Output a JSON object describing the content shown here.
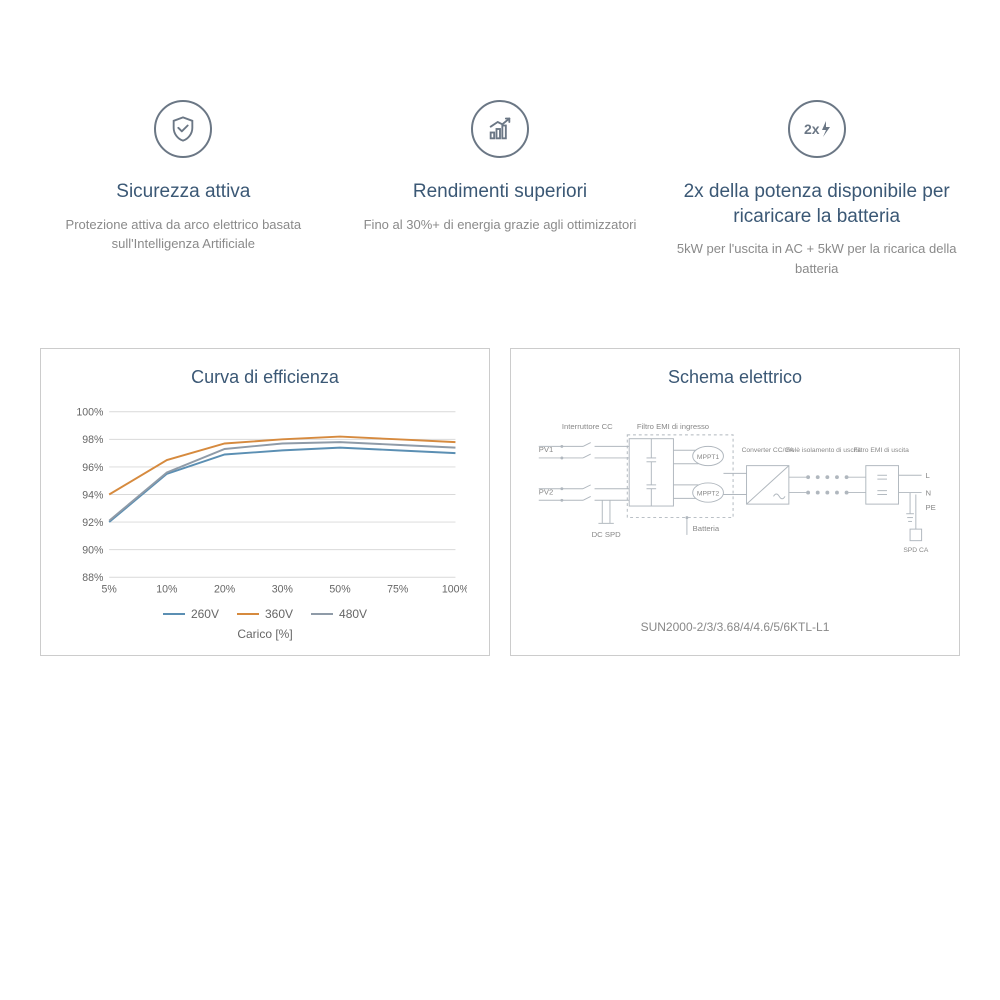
{
  "features": [
    {
      "title": "Sicurezza attiva",
      "desc": "Protezione attiva da arco elettrico basata sull'Intelligenza Artificiale"
    },
    {
      "title": "Rendimenti superiori",
      "desc": "Fino al 30%+ di energia grazie agli ottimizzatori"
    },
    {
      "title": "2x della potenza disponibile per ricaricare la batteria",
      "desc": "5kW per l'uscita in AC + 5kW per la ricarica della batteria"
    }
  ],
  "chart": {
    "title": "Curva di efficienza",
    "type": "line",
    "x_categories": [
      "5%",
      "10%",
      "20%",
      "30%",
      "50%",
      "75%",
      "100%"
    ],
    "x_axis_title": "Carico [%]",
    "y_ticks": [
      "88%",
      "90%",
      "92%",
      "94%",
      "96%",
      "98%",
      "100%"
    ],
    "ylim": [
      88,
      100
    ],
    "series": [
      {
        "name": "260V",
        "color": "#5b8fb3",
        "values": [
          92.0,
          95.5,
          96.9,
          97.2,
          97.4,
          97.2,
          97.0
        ]
      },
      {
        "name": "360V",
        "color": "#d68a3e",
        "values": [
          94.0,
          96.5,
          97.7,
          98.0,
          98.2,
          98.0,
          97.8
        ]
      },
      {
        "name": "480V",
        "color": "#8f9ba8",
        "values": [
          92.1,
          95.6,
          97.3,
          97.7,
          97.8,
          97.6,
          97.4
        ]
      }
    ],
    "grid_color": "#d9d9d9",
    "background": "#ffffff",
    "line_width": 2
  },
  "schema": {
    "title": "Schema elettrico",
    "model": "SUN2000-2/3/3.68/4/4.6/5/6KTL-L1",
    "labels": {
      "interruttore": "Interruttore CC",
      "filtro_in": "Filtro EMI di ingresso",
      "pv1": "PV1",
      "pv2": "PV2",
      "dc_spd": "DC SPD",
      "mppt1": "MPPT1",
      "mppt2": "MPPT2",
      "batteria": "Batteria",
      "converter": "Converter CC/CA",
      "rele": "Relè isolamento di uscita",
      "filtro_out": "Filtro EMI di uscita",
      "L": "L",
      "N": "N",
      "PE": "PE",
      "spd_ca": "SPD CA"
    },
    "box_stroke": "#b0b7be",
    "line_stroke": "#b0b7be"
  },
  "colors": {
    "title": "#3b5875",
    "text_muted": "#8a8a8a",
    "icon_stroke": "#6b7785",
    "panel_border": "#cccccc"
  }
}
